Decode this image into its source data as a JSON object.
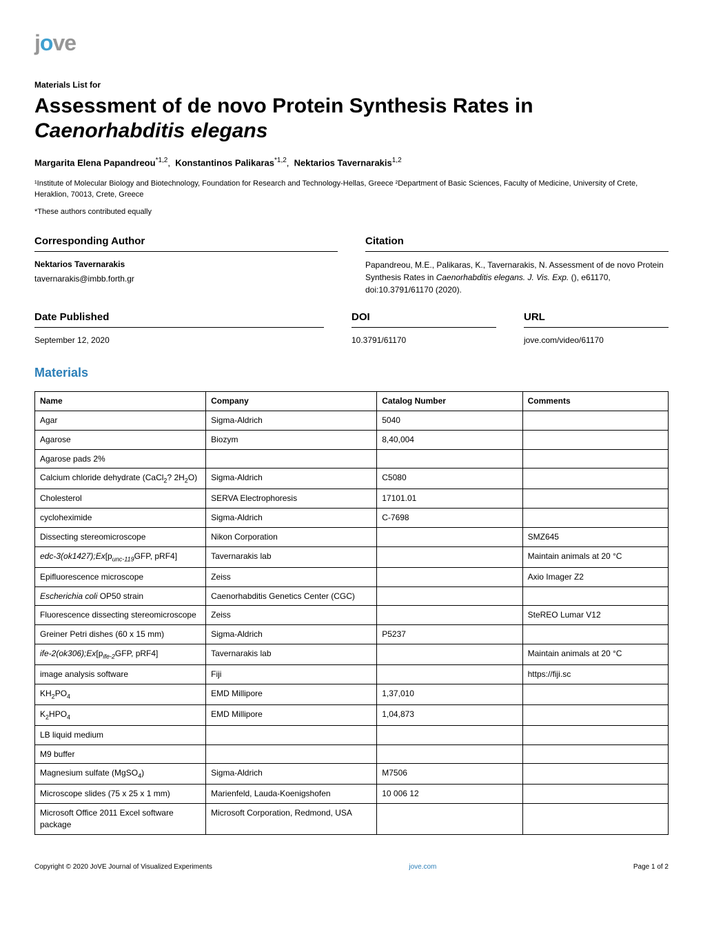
{
  "logo": {
    "prefix": "j",
    "accent": "o",
    "suffix": "ve"
  },
  "materials_for": "Materials List for",
  "title_line1": "Assessment of de novo Protein Synthesis Rates in",
  "title_line2": "Caenorhabditis elegans",
  "authors": [
    {
      "name": "Margarita Elena Papandreou",
      "sup": "*1,2"
    },
    {
      "name": "Konstantinos Palikaras",
      "sup": "*1,2"
    },
    {
      "name": "Nektarios Tavernarakis",
      "sup": "1,2"
    }
  ],
  "affiliations": "¹Institute of Molecular Biology and Biotechnology, Foundation for Research and Technology-Hellas, Greece  ²Department of Basic Sciences, Faculty of Medicine, University of Crete, Heraklion, 70013, Crete, Greece",
  "equal_note": "*These authors contributed equally",
  "headings": {
    "corresponding": "Corresponding Author",
    "citation": "Citation",
    "date_published": "Date Published",
    "doi": "DOI",
    "url": "URL",
    "materials": "Materials"
  },
  "corresponding": {
    "name": "Nektarios Tavernarakis",
    "email": "tavernarakis@imbb.forth.gr"
  },
  "citation": {
    "pre": "Papandreou, M.E., Palikaras, K., Tavernarakis, N. Assessment of de novo Protein Synthesis Rates in ",
    "italic": "Caenorhabditis elegans. J. Vis. Exp.",
    "post": " (), e61170, doi:10.3791/61170 (2020)."
  },
  "date_published": "September 12, 2020",
  "doi": "10.3791/61170",
  "url": "jove.com/video/61170",
  "table": {
    "headers": [
      "Name",
      "Company",
      "Catalog Number",
      "Comments"
    ],
    "rows": [
      {
        "name": "Agar",
        "company": "Sigma-Aldrich",
        "catalog": "5040",
        "comments": ""
      },
      {
        "name": "Agarose",
        "company": "Biozym",
        "catalog": "8,40,004",
        "comments": ""
      },
      {
        "name": "Agarose pads 2%",
        "company": "",
        "catalog": "",
        "comments": ""
      },
      {
        "name_html": "Calcium chloride dehydrate (CaCl<span class='sub'>2</span>? 2H<span class='sub'>2</span>O)",
        "company": "Sigma-Aldrich",
        "catalog": "C5080",
        "comments": ""
      },
      {
        "name": "Cholesterol",
        "company": "SERVA Electrophoresis",
        "catalog": "17101.01",
        "comments": ""
      },
      {
        "name": "cycloheximide",
        "company": "Sigma-Aldrich",
        "catalog": "C-7698",
        "comments": ""
      },
      {
        "name": "Dissecting stereomicroscope",
        "company": "Nikon Corporation",
        "catalog": "",
        "comments": "SMZ645"
      },
      {
        "name_html": "<i>edc-3(ok1427);Ex</i>[p<i><span class='sub'>unc-119</span></i>GFP, pRF4]",
        "company": "Tavernarakis lab",
        "catalog": "",
        "comments": "Maintain animals at 20 °C"
      },
      {
        "name": "Epifluorescence microscope",
        "company": "Zeiss",
        "catalog": "",
        "comments": "Axio Imager Z2"
      },
      {
        "name_html": "<i>Escherichia coli</i> OP50 strain",
        "company": "Caenorhabditis Genetics Center (CGC)",
        "catalog": "",
        "comments": ""
      },
      {
        "name": "Fluorescence dissecting stereomicroscope",
        "company": "Zeiss",
        "catalog": "",
        "comments": "SteREO Lumar V12"
      },
      {
        "name": "Greiner Petri dishes (60 x 15 mm)",
        "company": "Sigma-Aldrich",
        "catalog": "P5237",
        "comments": ""
      },
      {
        "name_html": "<i>ife-2(ok306);Ex</i>[p<i><span class='sub'>ife-2</span></i>GFP, pRF4]",
        "company": "Tavernarakis lab",
        "catalog": "",
        "comments": "Maintain animals at 20 °C"
      },
      {
        "name": "image analysis software",
        "company": "Fiji",
        "catalog": "",
        "comments": "https://fiji.sc"
      },
      {
        "name_html": "KH<span class='sub'>2</span>PO<span class='sub'>4</span>",
        "company": "EMD Millipore",
        "catalog": "1,37,010",
        "comments": ""
      },
      {
        "name_html": "K<span class='sub'>2</span>HPO<span class='sub'>4</span>",
        "company": "EMD Millipore",
        "catalog": "1,04,873",
        "comments": ""
      },
      {
        "name": "LB liquid medium",
        "company": "",
        "catalog": "",
        "comments": ""
      },
      {
        "name": "M9 buffer",
        "company": "",
        "catalog": "",
        "comments": ""
      },
      {
        "name_html": "Magnesium sulfate (MgSO<span class='sub'>4</span>)",
        "company": "Sigma-Aldrich",
        "catalog": "M7506",
        "comments": ""
      },
      {
        "name": "Microscope slides (75 x 25 x 1 mm)",
        "company": "Marienfeld, Lauda-Koenigshofen",
        "catalog": "10 006 12",
        "comments": ""
      },
      {
        "name": "Microsoft Office 2011 Excel software package",
        "company": "Microsoft Corporation, Redmond, USA",
        "catalog": "",
        "comments": ""
      }
    ],
    "col_widths": [
      "27%",
      "27%",
      "23%",
      "23%"
    ]
  },
  "footer": {
    "copyright": "Copyright © 2020 JoVE Journal of Visualized Experiments",
    "link": "jove.com",
    "page": "Page 1 of 2"
  },
  "colors": {
    "accent_blue": "#2c7fb8",
    "logo_grey": "#969696",
    "logo_blue": "#40a0d0",
    "border": "#000000"
  }
}
